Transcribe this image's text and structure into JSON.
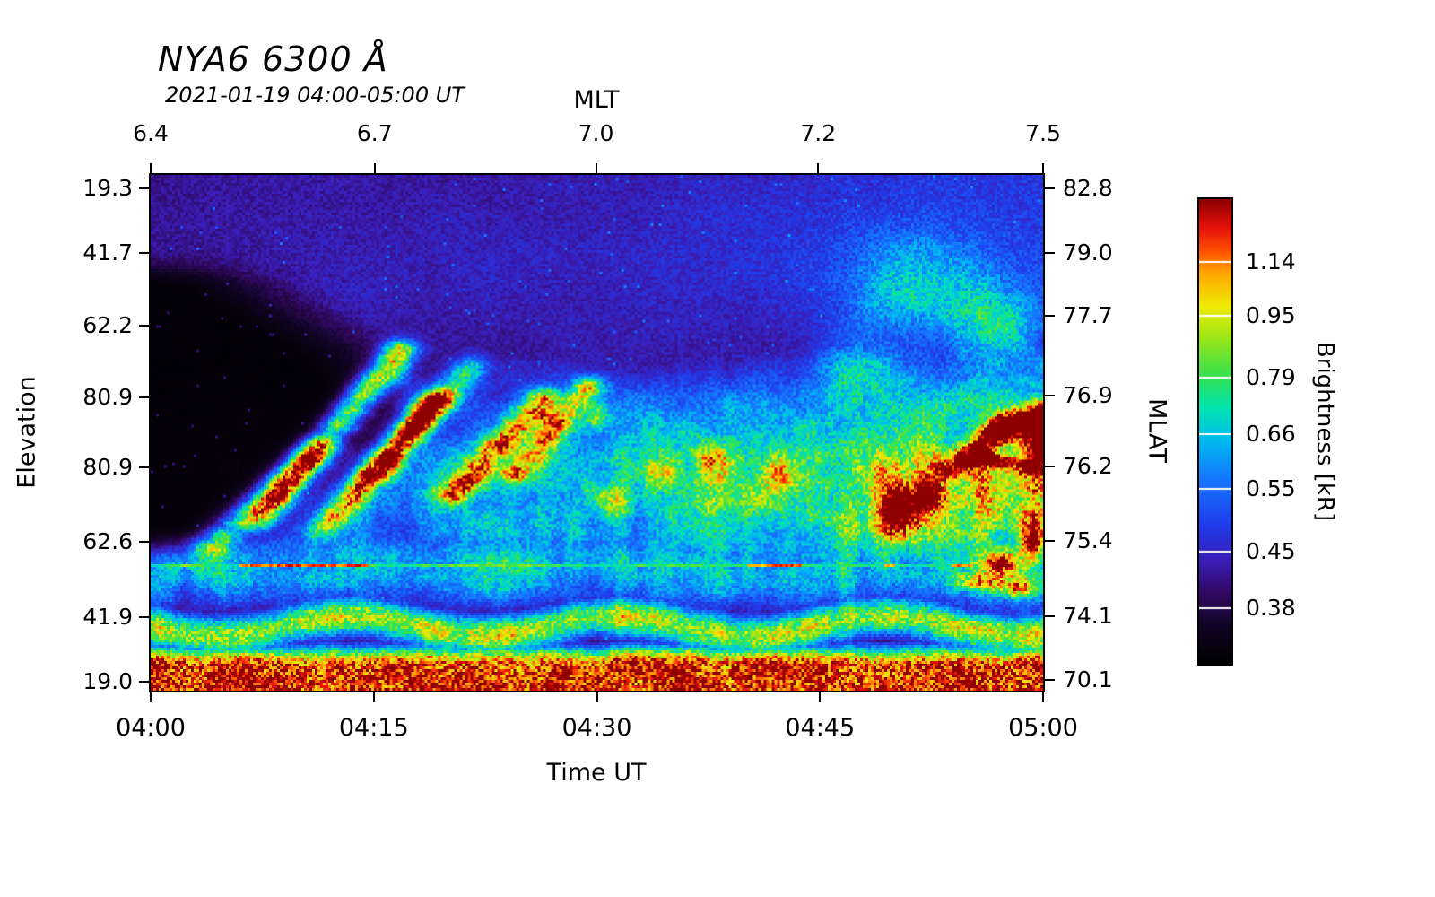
{
  "title": "NYA6 6300 Å",
  "subtitle": "2021-01-19 04:00-05:00 UT",
  "axes": {
    "top": {
      "label": "MLT",
      "ticks": [
        {
          "label": "6.4",
          "f": 0.0
        },
        {
          "label": "6.7",
          "f": 0.251
        },
        {
          "label": "7.0",
          "f": 0.499
        },
        {
          "label": "7.2",
          "f": 0.748
        },
        {
          "label": "7.5",
          "f": 1.0
        }
      ]
    },
    "bottom": {
      "label": "Time UT",
      "ticks": [
        {
          "label": "04:00",
          "f": 0.0
        },
        {
          "label": "04:15",
          "f": 0.25
        },
        {
          "label": "04:30",
          "f": 0.5
        },
        {
          "label": "04:45",
          "f": 0.75
        },
        {
          "label": "05:00",
          "f": 1.0
        }
      ]
    },
    "left": {
      "label": "Elevation",
      "ticks": [
        {
          "label": "19.3",
          "f": 0.026
        },
        {
          "label": "41.7",
          "f": 0.151
        },
        {
          "label": "62.2",
          "f": 0.292
        },
        {
          "label": "80.9",
          "f": 0.431
        },
        {
          "label": "80.9",
          "f": 0.567
        },
        {
          "label": "62.6",
          "f": 0.711
        },
        {
          "label": "41.9",
          "f": 0.857
        },
        {
          "label": "19.0",
          "f": 0.982
        }
      ]
    },
    "right": {
      "label": "MLAT",
      "ticks": [
        {
          "label": "82.8",
          "f": 0.026
        },
        {
          "label": "79.0",
          "f": 0.151
        },
        {
          "label": "77.7",
          "f": 0.273
        },
        {
          "label": "76.9",
          "f": 0.428
        },
        {
          "label": "76.2",
          "f": 0.565
        },
        {
          "label": "75.4",
          "f": 0.709
        },
        {
          "label": "74.1",
          "f": 0.856
        },
        {
          "label": "70.1",
          "f": 0.979
        }
      ]
    }
  },
  "colorbar": {
    "label": "Brightness [kR]",
    "ticks": [
      {
        "label": "1.14",
        "f": 0.135
      },
      {
        "label": "0.95",
        "f": 0.251
      },
      {
        "label": "0.79",
        "f": 0.384
      },
      {
        "label": "0.66",
        "f": 0.506
      },
      {
        "label": "0.55",
        "f": 0.623
      },
      {
        "label": "0.45",
        "f": 0.758
      },
      {
        "label": "0.38",
        "f": 0.88
      }
    ]
  },
  "chart_data": {
    "type": "heatmap",
    "title": "NYA6 6300 Å",
    "subtitle": "2021-01-19 04:00-05:00 UT",
    "xlabel": "Time UT",
    "ylabel": "Elevation",
    "ylabel_right": "MLAT",
    "top_axis_label": "MLT",
    "colorbar_label": "Brightness [kR]",
    "x_range_ut": [
      "04:00",
      "05:00"
    ],
    "x_ticks": [
      "04:00",
      "04:15",
      "04:30",
      "04:45",
      "05:00"
    ],
    "mlt_ticks": [
      "6.4",
      "6.7",
      "7.0",
      "7.2",
      "7.5"
    ],
    "elevation_ticks": [
      "19.3",
      "41.7",
      "62.2",
      "80.9",
      "80.9",
      "62.6",
      "41.9",
      "19.0"
    ],
    "mlat_ticks": [
      "82.8",
      "79.0",
      "77.7",
      "76.9",
      "76.2",
      "75.4",
      "74.1",
      "70.1"
    ],
    "brightness_ticks_kR": [
      1.14,
      0.95,
      0.79,
      0.66,
      0.55,
      0.45,
      0.38
    ],
    "colormap_stops": [
      [
        0.0,
        0,
        0,
        0
      ],
      [
        0.08,
        16,
        4,
        36
      ],
      [
        0.15,
        48,
        8,
        94
      ],
      [
        0.22,
        58,
        28,
        180
      ],
      [
        0.3,
        32,
        60,
        235
      ],
      [
        0.4,
        20,
        120,
        255
      ],
      [
        0.48,
        0,
        185,
        240
      ],
      [
        0.55,
        0,
        228,
        178
      ],
      [
        0.62,
        52,
        225,
        80
      ],
      [
        0.7,
        152,
        230,
        24
      ],
      [
        0.77,
        238,
        235,
        2
      ],
      [
        0.84,
        255,
        168,
        0
      ],
      [
        0.89,
        255,
        80,
        0
      ],
      [
        0.94,
        228,
        16,
        10
      ],
      [
        1.0,
        142,
        0,
        0
      ]
    ],
    "grid_cells": {
      "cols": 332,
      "rows": 192
    },
    "scanline_row_frac": 0.757,
    "wedge": {
      "d_center": 0.45,
      "d_sigma": 0.26,
      "max_w": 0.3
    },
    "arcs": [
      {
        "x0": 0.07,
        "y0": 0.72,
        "x1": 0.19,
        "y1": 0.53,
        "w": 0.022,
        "a": 0.5
      },
      {
        "x0": 0.12,
        "y0": 0.67,
        "x1": 0.28,
        "y1": 0.34,
        "w": 0.02,
        "a": 0.6
      },
      {
        "x0": 0.19,
        "y0": 0.69,
        "x1": 0.32,
        "y1": 0.44,
        "w": 0.018,
        "a": 0.52
      },
      {
        "x0": 0.25,
        "y0": 0.58,
        "x1": 0.36,
        "y1": 0.37,
        "w": 0.02,
        "a": 0.55
      },
      {
        "x0": 0.34,
        "y0": 0.62,
        "x1": 0.44,
        "y1": 0.43,
        "w": 0.019,
        "a": 0.52
      },
      {
        "x0": 0.41,
        "y0": 0.58,
        "x1": 0.49,
        "y1": 0.41,
        "w": 0.018,
        "a": 0.5
      },
      {
        "x0": 0.9,
        "y0": 0.57,
        "x1": 0.96,
        "y1": 0.485,
        "w": 0.018,
        "a": 0.62
      },
      {
        "x0": 0.955,
        "y0": 0.49,
        "x1": 1.0,
        "y1": 0.46,
        "w": 0.02,
        "a": 0.65
      },
      {
        "x0": 0.93,
        "y0": 0.55,
        "x1": 1.0,
        "y1": 0.57,
        "w": 0.014,
        "a": 0.45
      }
    ],
    "blobs": [
      {
        "x": 0.275,
        "y": 0.38,
        "sx": 0.018,
        "sy": 0.03,
        "a": 0.3
      },
      {
        "x": 0.3,
        "y": 0.45,
        "sx": 0.02,
        "sy": 0.04,
        "a": 0.22
      },
      {
        "x": 0.44,
        "y": 0.46,
        "sx": 0.016,
        "sy": 0.03,
        "a": 0.28
      },
      {
        "x": 0.5,
        "y": 0.47,
        "sx": 0.014,
        "sy": 0.025,
        "a": 0.26
      },
      {
        "x": 0.57,
        "y": 0.58,
        "sx": 0.02,
        "sy": 0.035,
        "a": 0.26
      },
      {
        "x": 0.63,
        "y": 0.55,
        "sx": 0.022,
        "sy": 0.04,
        "a": 0.26
      },
      {
        "x": 0.7,
        "y": 0.58,
        "sx": 0.02,
        "sy": 0.035,
        "a": 0.24
      },
      {
        "x": 0.52,
        "y": 0.63,
        "sx": 0.02,
        "sy": 0.03,
        "a": 0.22
      },
      {
        "x": 0.86,
        "y": 0.22,
        "sx": 0.08,
        "sy": 0.1,
        "a": 0.26
      },
      {
        "x": 0.95,
        "y": 0.3,
        "sx": 0.05,
        "sy": 0.08,
        "a": 0.28
      },
      {
        "x": 0.8,
        "y": 0.38,
        "sx": 0.05,
        "sy": 0.07,
        "a": 0.2
      },
      {
        "x": 0.845,
        "y": 0.655,
        "sx": 0.03,
        "sy": 0.048,
        "a": 0.62
      },
      {
        "x": 0.872,
        "y": 0.615,
        "sx": 0.018,
        "sy": 0.028,
        "a": 0.35
      },
      {
        "x": 0.995,
        "y": 0.52,
        "sx": 0.015,
        "sy": 0.06,
        "a": 0.5
      },
      {
        "x": 0.955,
        "y": 0.755,
        "sx": 0.018,
        "sy": 0.024,
        "a": 0.5
      },
      {
        "x": 0.988,
        "y": 0.71,
        "sx": 0.012,
        "sy": 0.05,
        "a": 0.55
      },
      {
        "x": 0.92,
        "y": 0.79,
        "sx": 0.03,
        "sy": 0.02,
        "a": 0.35
      },
      {
        "x": 0.97,
        "y": 0.8,
        "sx": 0.028,
        "sy": 0.02,
        "a": 0.4
      }
    ]
  }
}
